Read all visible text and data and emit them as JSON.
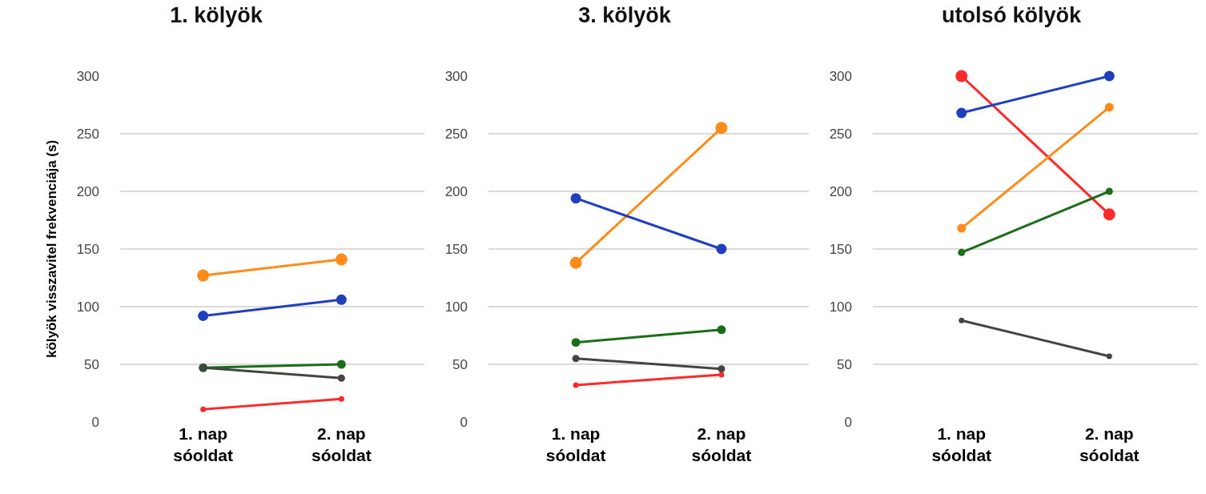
{
  "chart_data": [
    {
      "type": "line",
      "title": "1. kölyök",
      "ylabel": "kölyök visszavitel frekvenciája (s)",
      "categories": [
        "1. nap sóoldat",
        "2. nap sóoldat"
      ],
      "ylim": [
        0,
        300
      ],
      "yticks": [
        0,
        50,
        100,
        150,
        200,
        250,
        300
      ],
      "grid": "y",
      "marker": "circle",
      "line_style": "solid",
      "series": [
        {
          "color": "#ff8c1a",
          "values": [
            127,
            141
          ]
        },
        {
          "color": "#1f3fbf",
          "values": [
            92,
            106
          ]
        },
        {
          "color": "#1a6e1a",
          "values": [
            47,
            50
          ]
        },
        {
          "color": "#444444",
          "values": [
            47,
            38
          ]
        },
        {
          "color": "#ff2a2a",
          "values": [
            11,
            20
          ]
        }
      ]
    },
    {
      "type": "line",
      "title": "3. kölyök",
      "categories": [
        "1. nap sóoldat",
        "2. nap sóoldat"
      ],
      "ylim": [
        0,
        300
      ],
      "yticks": [
        0,
        50,
        100,
        150,
        200,
        250,
        300
      ],
      "grid": "y",
      "marker": "circle",
      "line_style": "solid",
      "series": [
        {
          "color": "#ff8c1a",
          "values": [
            138,
            255
          ]
        },
        {
          "color": "#1f3fbf",
          "values": [
            194,
            150
          ]
        },
        {
          "color": "#1a6e1a",
          "values": [
            69,
            80
          ]
        },
        {
          "color": "#444444",
          "values": [
            55,
            46
          ]
        },
        {
          "color": "#ff2a2a",
          "values": [
            32,
            41
          ]
        }
      ]
    },
    {
      "type": "line",
      "title": "utolsó kölyök",
      "categories": [
        "1. nap sóoldat",
        "2. nap sóoldat"
      ],
      "ylim": [
        0,
        300
      ],
      "yticks": [
        0,
        50,
        100,
        150,
        200,
        250,
        300
      ],
      "grid": "y",
      "marker": "circle",
      "line_style": "solid",
      "series": [
        {
          "color": "#ff2a2a",
          "values": [
            300,
            180
          ]
        },
        {
          "color": "#1f3fbf",
          "values": [
            268,
            300
          ]
        },
        {
          "color": "#ff8c1a",
          "values": [
            168,
            273
          ]
        },
        {
          "color": "#1a6e1a",
          "values": [
            147,
            200
          ]
        },
        {
          "color": "#444444",
          "values": [
            88,
            57
          ]
        }
      ]
    }
  ]
}
